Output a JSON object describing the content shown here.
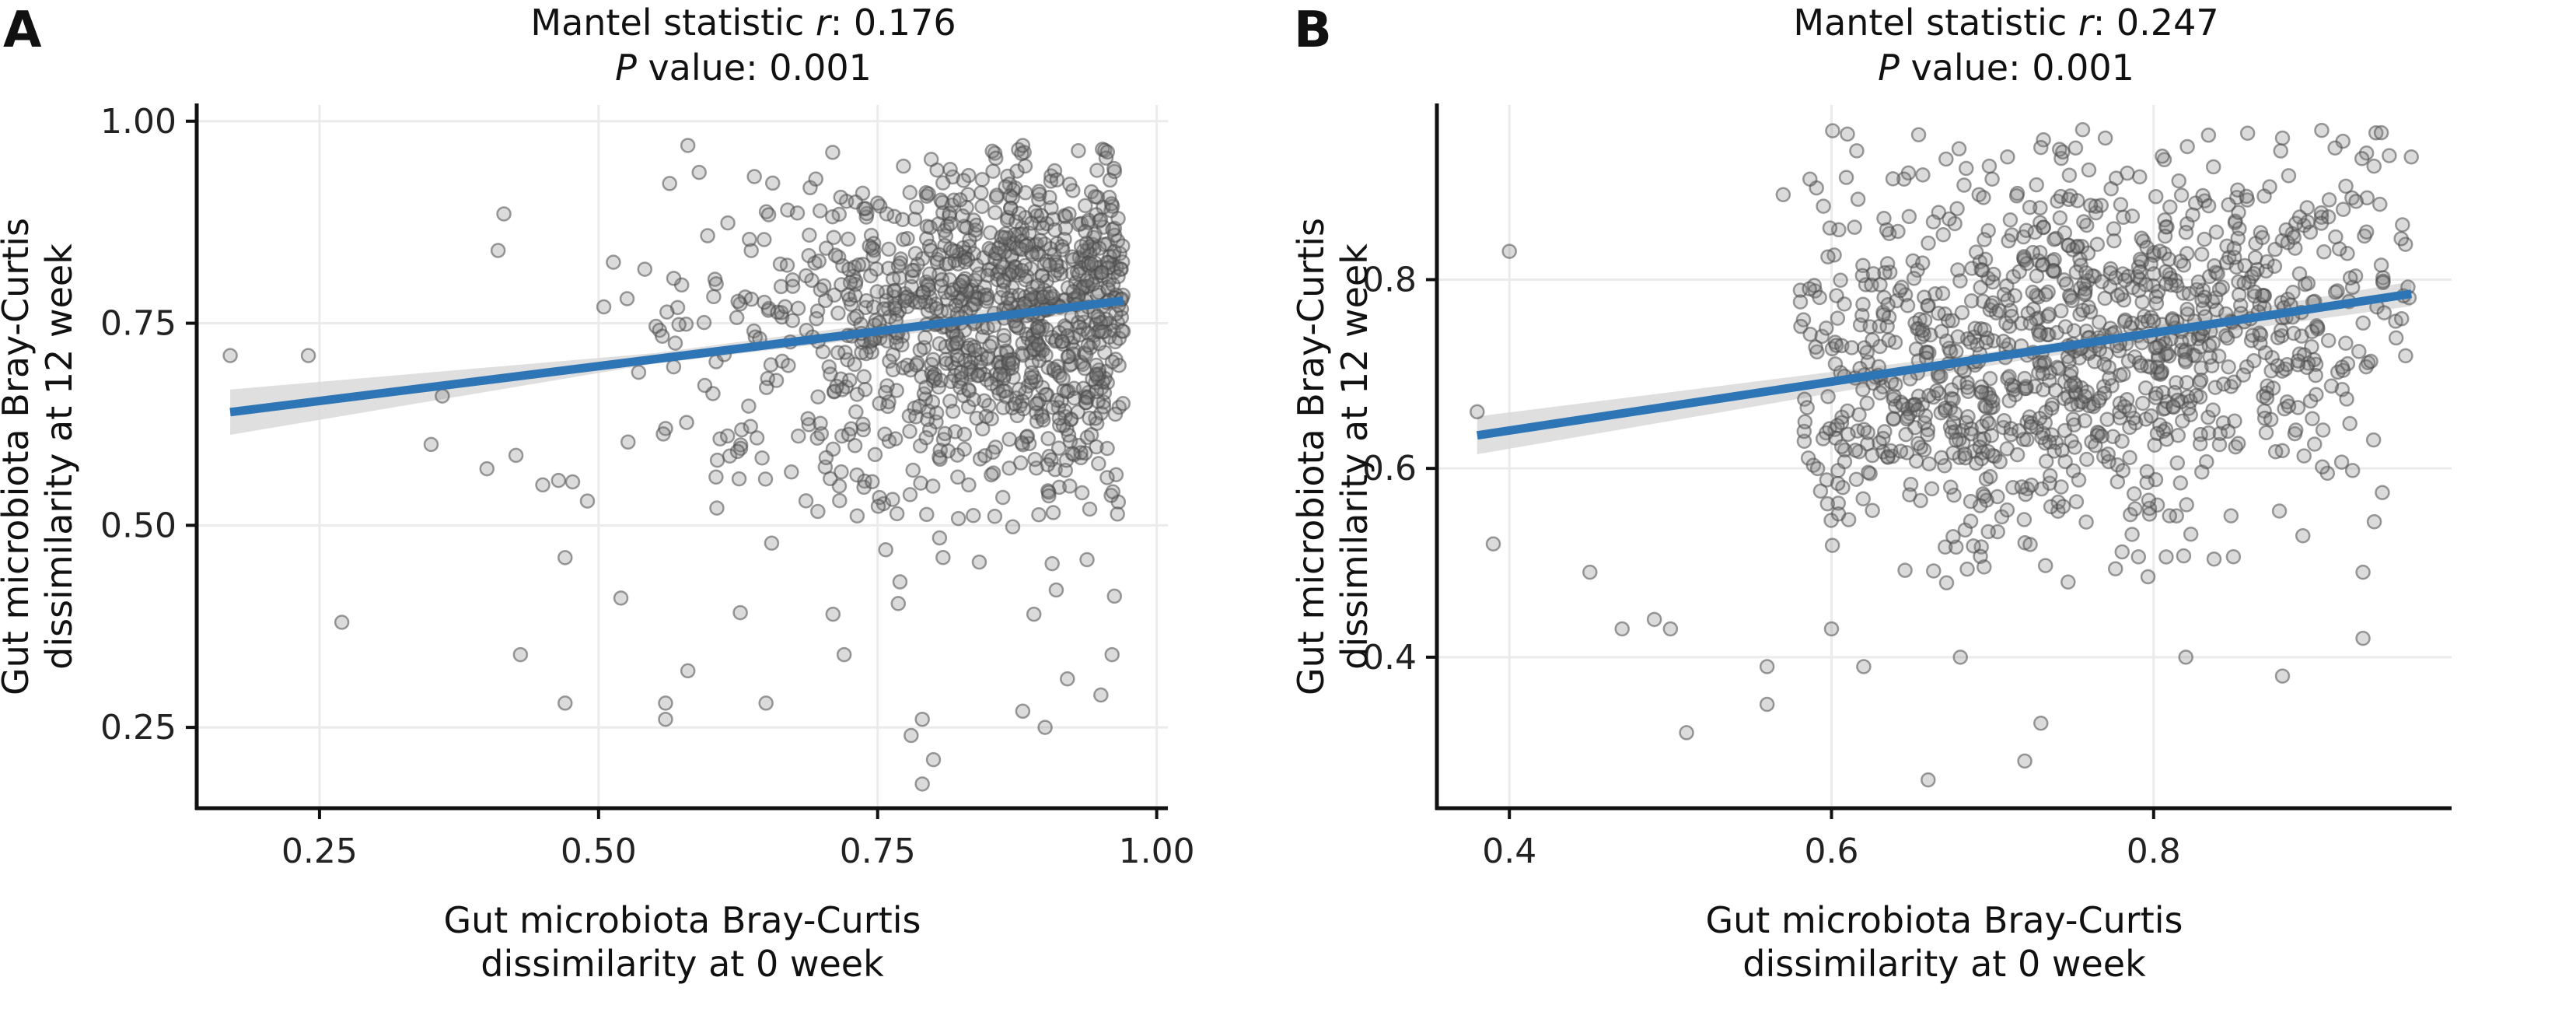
{
  "chart_data": [
    {
      "panel_label": "A",
      "type": "scatter",
      "title_lines": [
        {
          "prefix": "Mantel statistic ",
          "italic": "r",
          "suffix": ": 0.176"
        },
        {
          "prefix": "",
          "italic": "P",
          "suffix": " value: 0.001"
        }
      ],
      "xlabel_lines": [
        "Gut microbiota Bray-Curtis",
        "dissimilarity at 0 week"
      ],
      "ylabel_lines": [
        "Gut microbiota Bray-Curtis",
        "dissimilarity at 12 week"
      ],
      "xlim": [
        0.14,
        1.01
      ],
      "ylim": [
        0.15,
        1.02
      ],
      "xticks": [
        0.25,
        0.5,
        0.75,
        1.0
      ],
      "yticks": [
        0.25,
        0.5,
        0.75,
        1.0
      ],
      "xtick_labels": [
        "0.25",
        "0.50",
        "0.75",
        "1.00"
      ],
      "ytick_labels": [
        "0.25",
        "0.50",
        "0.75",
        "1.00"
      ],
      "grid": true,
      "point_color": "#7f7f7f",
      "fit_line": {
        "x": [
          0.17,
          0.97
        ],
        "y": [
          0.64,
          0.778
        ],
        "color": "#2e75b6"
      },
      "confidence_band": {
        "x": [
          0.17,
          0.55,
          0.97
        ],
        "lower": [
          0.612,
          0.7,
          0.768
        ],
        "upper": [
          0.668,
          0.713,
          0.79
        ],
        "color": "#d9d9d9"
      },
      "cloud": {
        "n": 1100,
        "x_range": [
          0.17,
          0.97
        ],
        "y_range": [
          0.18,
          0.97
        ],
        "x_center": 0.8,
        "y_center": 0.75
      },
      "points": [
        {
          "x": 0.17,
          "y": 0.71
        },
        {
          "x": 0.24,
          "y": 0.71
        },
        {
          "x": 0.27,
          "y": 0.38
        },
        {
          "x": 0.35,
          "y": 0.6
        },
        {
          "x": 0.36,
          "y": 0.66
        },
        {
          "x": 0.4,
          "y": 0.57
        },
        {
          "x": 0.41,
          "y": 0.84
        },
        {
          "x": 0.43,
          "y": 0.34
        },
        {
          "x": 0.45,
          "y": 0.55
        },
        {
          "x": 0.47,
          "y": 0.28
        },
        {
          "x": 0.47,
          "y": 0.46
        },
        {
          "x": 0.49,
          "y": 0.53
        },
        {
          "x": 0.52,
          "y": 0.41
        },
        {
          "x": 0.56,
          "y": 0.26
        },
        {
          "x": 0.56,
          "y": 0.28
        },
        {
          "x": 0.58,
          "y": 0.32
        },
        {
          "x": 0.65,
          "y": 0.28
        },
        {
          "x": 0.72,
          "y": 0.34
        },
        {
          "x": 0.71,
          "y": 0.39
        },
        {
          "x": 0.77,
          "y": 0.43
        },
        {
          "x": 0.78,
          "y": 0.24
        },
        {
          "x": 0.79,
          "y": 0.26
        },
        {
          "x": 0.79,
          "y": 0.18
        },
        {
          "x": 0.8,
          "y": 0.21
        },
        {
          "x": 0.88,
          "y": 0.27
        },
        {
          "x": 0.89,
          "y": 0.39
        },
        {
          "x": 0.9,
          "y": 0.25
        },
        {
          "x": 0.91,
          "y": 0.42
        },
        {
          "x": 0.92,
          "y": 0.31
        },
        {
          "x": 0.95,
          "y": 0.29
        },
        {
          "x": 0.96,
          "y": 0.34
        },
        {
          "x": 0.94,
          "y": 0.52
        },
        {
          "x": 0.97,
          "y": 0.74
        },
        {
          "x": 0.88,
          "y": 0.97
        },
        {
          "x": 0.58,
          "y": 0.97
        }
      ]
    },
    {
      "panel_label": "B",
      "type": "scatter",
      "title_lines": [
        {
          "prefix": "Mantel statistic ",
          "italic": "r",
          "suffix": ": 0.247"
        },
        {
          "prefix": "",
          "italic": "P",
          "suffix": " value: 0.001"
        }
      ],
      "xlabel_lines": [
        "Gut microbiota Bray-Curtis",
        "dissimilarity at 0 week"
      ],
      "ylabel_lines": [
        "Gut microbiota Bray-Curtis",
        "dissimilarity at 12 week"
      ],
      "xlim": [
        0.355,
        0.985
      ],
      "ylim": [
        0.24,
        0.985
      ],
      "xticks": [
        0.4,
        0.6,
        0.8
      ],
      "yticks": [
        0.4,
        0.6,
        0.8
      ],
      "xtick_labels": [
        "0.4",
        "0.6",
        "0.8"
      ],
      "ytick_labels": [
        "0.4",
        "0.6",
        "0.8"
      ],
      "grid": true,
      "point_color": "#7f7f7f",
      "fit_line": {
        "x": [
          0.38,
          0.96
        ],
        "y": [
          0.635,
          0.785
        ],
        "color": "#2e75b6"
      },
      "confidence_band": {
        "x": [
          0.38,
          0.72,
          0.96
        ],
        "lower": [
          0.615,
          0.715,
          0.772
        ],
        "upper": [
          0.655,
          0.728,
          0.798
        ],
        "color": "#d9d9d9"
      },
      "cloud": {
        "n": 1100,
        "x_range": [
          0.38,
          0.96
        ],
        "y_range": [
          0.37,
          0.96
        ],
        "x_center": 0.75,
        "y_center": 0.72
      },
      "points": [
        {
          "x": 0.38,
          "y": 0.66
        },
        {
          "x": 0.39,
          "y": 0.52
        },
        {
          "x": 0.4,
          "y": 0.83
        },
        {
          "x": 0.45,
          "y": 0.49
        },
        {
          "x": 0.47,
          "y": 0.43
        },
        {
          "x": 0.49,
          "y": 0.44
        },
        {
          "x": 0.51,
          "y": 0.32
        },
        {
          "x": 0.5,
          "y": 0.43
        },
        {
          "x": 0.56,
          "y": 0.35
        },
        {
          "x": 0.56,
          "y": 0.39
        },
        {
          "x": 0.6,
          "y": 0.43
        },
        {
          "x": 0.62,
          "y": 0.39
        },
        {
          "x": 0.66,
          "y": 0.27
        },
        {
          "x": 0.72,
          "y": 0.29
        },
        {
          "x": 0.73,
          "y": 0.33
        },
        {
          "x": 0.68,
          "y": 0.4
        },
        {
          "x": 0.82,
          "y": 0.4
        },
        {
          "x": 0.88,
          "y": 0.38
        },
        {
          "x": 0.93,
          "y": 0.42
        },
        {
          "x": 0.93,
          "y": 0.49
        },
        {
          "x": 0.96,
          "y": 0.93
        },
        {
          "x": 0.88,
          "y": 0.95
        },
        {
          "x": 0.77,
          "y": 0.95
        },
        {
          "x": 0.73,
          "y": 0.94
        },
        {
          "x": 0.57,
          "y": 0.89
        }
      ]
    }
  ]
}
